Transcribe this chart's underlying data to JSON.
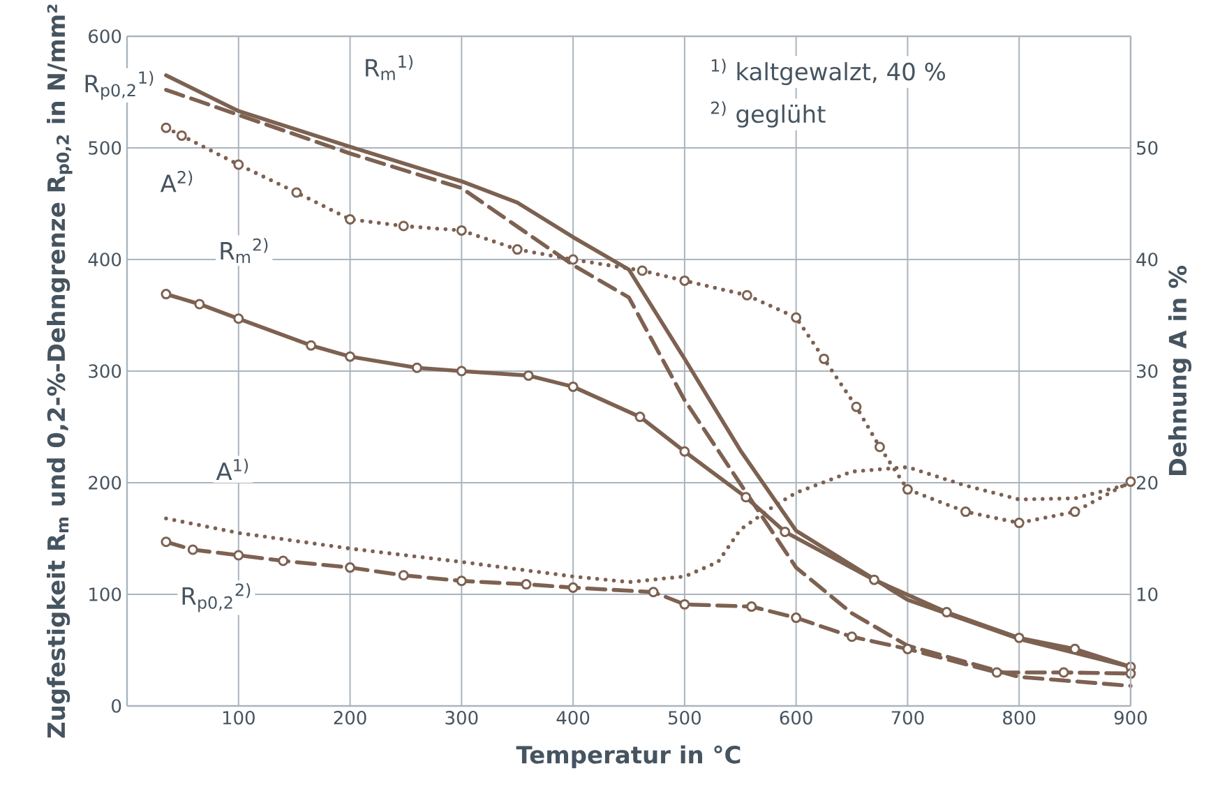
{
  "chart_data": {
    "type": "line",
    "xlabel": "Temperatur in °C",
    "ylabel": "Zugfestigkeit R$_{m}$ und 0,2-%-Dehngrenze R$_{p0,2}$ in N/mm²",
    "y2label": "Dehnung A in %",
    "annotations": [
      "$^{1)}$ kaltgewalzt, 40 %",
      "$^{2)}$ geglüht"
    ],
    "xlim": [
      0,
      900
    ],
    "xticks": [
      100,
      200,
      300,
      400,
      500,
      600,
      700,
      800,
      900
    ],
    "ylim": [
      0,
      600
    ],
    "yticks": [
      0,
      100,
      200,
      300,
      400,
      500,
      600
    ],
    "y2lim": [
      0,
      60
    ],
    "y2ticks": [
      10,
      20,
      30,
      40,
      50
    ],
    "grid": true,
    "series": [
      {
        "name": "R$_{m}$$^{1)}$",
        "color": "#7d6151",
        "line_style": "solid",
        "marker": "none",
        "x": [
          35,
          100,
          200,
          300,
          350,
          400,
          450,
          500,
          550,
          600,
          700,
          800,
          900
        ],
        "values": [
          565,
          533,
          501,
          470,
          451,
          420,
          391,
          311,
          229,
          157,
          95,
          60,
          35
        ]
      },
      {
        "name": "R$_{p0,2}$$^{1)}$",
        "color": "#7d6151",
        "line_style": "dashed",
        "marker": "none",
        "x": [
          35,
          200,
          300,
          400,
          450,
          500,
          550,
          600,
          650,
          700,
          800,
          900
        ],
        "values": [
          552,
          495,
          464,
          395,
          366,
          274,
          199,
          124,
          83,
          54,
          26,
          18
        ]
      },
      {
        "name": "A$^{2)}$",
        "color": "#7d6151",
        "line_style": "dotted",
        "marker": "circle",
        "axis": "y2",
        "x": [
          35,
          49,
          100,
          152,
          200,
          248,
          300,
          350,
          400,
          462,
          500,
          556,
          600,
          625,
          654,
          675,
          700,
          752,
          800,
          850,
          900
        ],
        "values": [
          51.8,
          51.1,
          48.5,
          46,
          43.6,
          43,
          42.6,
          40.9,
          40,
          39,
          38.1,
          36.8,
          34.8,
          31.1,
          26.8,
          23.2,
          19.4,
          17.4,
          16.4,
          17.4,
          20.1
        ]
      },
      {
        "name": "R$_{m}$$^{2)}$",
        "color": "#7d6151",
        "line_style": "solid",
        "marker": "circle",
        "x": [
          35,
          65,
          100,
          165,
          200,
          260,
          300,
          360,
          400,
          460,
          500,
          555,
          590,
          670,
          735,
          800,
          850,
          900
        ],
        "values": [
          369,
          360,
          347,
          323,
          313,
          303,
          300,
          296,
          286,
          259,
          228,
          187,
          156,
          113,
          84,
          61,
          51,
          35
        ]
      },
      {
        "name": "A$^{1)}$",
        "color": "#7d6151",
        "line_style": "dotted",
        "marker": "none",
        "axis": "y2",
        "x": [
          35,
          100,
          200,
          300,
          400,
          450,
          500,
          530,
          550,
          580,
          600,
          650,
          700,
          750,
          800,
          850,
          900
        ],
        "values": [
          16.8,
          15.5,
          14.1,
          12.9,
          11.6,
          11.1,
          11.6,
          12.9,
          15.8,
          17.9,
          19.1,
          21,
          21.4,
          19.8,
          18.5,
          18.6,
          19.9
        ]
      },
      {
        "name": "R$_{p0,2}$$^{2)}$",
        "color": "#7d6151",
        "line_style": "dashed",
        "marker": "circle",
        "x": [
          35,
          59,
          100,
          140,
          200,
          248,
          300,
          358,
          400,
          472,
          500,
          560,
          600,
          650,
          700,
          780,
          840,
          900
        ],
        "values": [
          147,
          140,
          135,
          130,
          124,
          117,
          112,
          109,
          106,
          102,
          91,
          89,
          79,
          62,
          51,
          30,
          30,
          29
        ]
      }
    ]
  }
}
